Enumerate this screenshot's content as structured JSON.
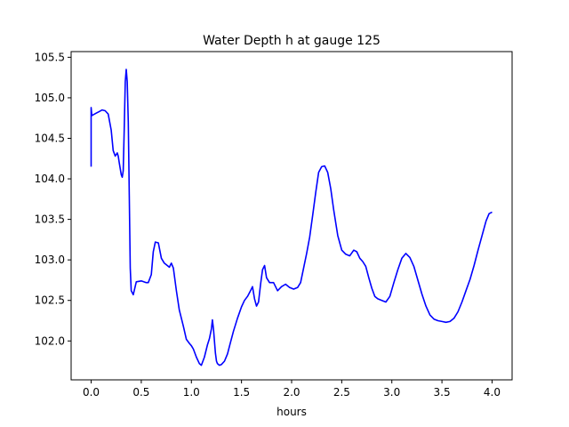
{
  "chart_data": {
    "type": "line",
    "title": "Water Depth h at gauge 125",
    "xlabel": "hours",
    "ylabel": "",
    "xlim": [
      -0.2,
      4.2
    ],
    "ylim": [
      101.52,
      105.57
    ],
    "xticks": [
      0.0,
      0.5,
      1.0,
      1.5,
      2.0,
      2.5,
      3.0,
      3.5,
      4.0
    ],
    "xtick_labels": [
      "0.0",
      "0.5",
      "1.0",
      "1.5",
      "2.0",
      "2.5",
      "3.0",
      "3.5",
      "4.0"
    ],
    "yticks": [
      102.0,
      102.5,
      103.0,
      103.5,
      104.0,
      104.5,
      105.0,
      105.5
    ],
    "ytick_labels": [
      "102.0",
      "102.5",
      "103.0",
      "103.5",
      "104.0",
      "104.5",
      "105.0",
      "105.5"
    ],
    "grid": false,
    "series": [
      {
        "color": "#0000ff",
        "x": [
          0.0,
          0.0,
          0.005,
          0.005,
          0.02,
          0.05,
          0.08,
          0.11,
          0.14,
          0.17,
          0.2,
          0.22,
          0.24,
          0.26,
          0.27,
          0.28,
          0.3,
          0.31,
          0.32,
          0.33,
          0.34,
          0.35,
          0.36,
          0.37,
          0.38,
          0.39,
          0.4,
          0.42,
          0.45,
          0.5,
          0.55,
          0.57,
          0.6,
          0.62,
          0.64,
          0.67,
          0.7,
          0.73,
          0.76,
          0.78,
          0.8,
          0.82,
          0.85,
          0.88,
          0.92,
          0.95,
          0.98,
          1.0,
          1.02,
          1.05,
          1.08,
          1.1,
          1.13,
          1.16,
          1.18,
          1.2,
          1.21,
          1.22,
          1.23,
          1.24,
          1.25,
          1.26,
          1.28,
          1.3,
          1.33,
          1.36,
          1.39,
          1.42,
          1.46,
          1.5,
          1.53,
          1.56,
          1.59,
          1.61,
          1.63,
          1.65,
          1.67,
          1.69,
          1.71,
          1.73,
          1.75,
          1.78,
          1.82,
          1.86,
          1.9,
          1.94,
          1.98,
          2.02,
          2.06,
          2.09,
          2.12,
          2.15,
          2.18,
          2.21,
          2.24,
          2.27,
          2.3,
          2.33,
          2.36,
          2.39,
          2.42,
          2.46,
          2.5,
          2.54,
          2.58,
          2.62,
          2.65,
          2.68,
          2.71,
          2.74,
          2.77,
          2.8,
          2.83,
          2.86,
          2.9,
          2.94,
          2.98,
          3.02,
          3.06,
          3.1,
          3.14,
          3.18,
          3.22,
          3.26,
          3.3,
          3.34,
          3.38,
          3.42,
          3.46,
          3.5,
          3.54,
          3.58,
          3.62,
          3.66,
          3.7,
          3.74,
          3.78,
          3.82,
          3.86,
          3.9,
          3.94,
          3.97,
          4.0
        ],
        "y": [
          104.15,
          104.88,
          104.8,
          104.78,
          104.79,
          104.81,
          104.83,
          104.85,
          104.84,
          104.8,
          104.6,
          104.35,
          104.28,
          104.32,
          104.28,
          104.2,
          104.05,
          104.02,
          104.1,
          104.6,
          105.2,
          105.35,
          105.2,
          104.7,
          103.8,
          102.9,
          102.62,
          102.57,
          102.73,
          102.74,
          102.72,
          102.72,
          102.82,
          103.1,
          103.22,
          103.21,
          103.02,
          102.96,
          102.93,
          102.91,
          102.96,
          102.9,
          102.62,
          102.38,
          102.18,
          102.02,
          101.97,
          101.94,
          101.9,
          101.8,
          101.72,
          101.7,
          101.8,
          101.95,
          102.03,
          102.15,
          102.26,
          102.15,
          102.0,
          101.85,
          101.75,
          101.72,
          101.7,
          101.71,
          101.75,
          101.84,
          101.98,
          102.12,
          102.28,
          102.42,
          102.5,
          102.55,
          102.62,
          102.67,
          102.52,
          102.43,
          102.48,
          102.7,
          102.88,
          102.93,
          102.78,
          102.72,
          102.72,
          102.62,
          102.67,
          102.7,
          102.66,
          102.64,
          102.66,
          102.72,
          102.9,
          103.08,
          103.28,
          103.55,
          103.83,
          104.08,
          104.15,
          104.16,
          104.08,
          103.88,
          103.62,
          103.3,
          103.12,
          103.07,
          103.05,
          103.12,
          103.1,
          103.02,
          102.98,
          102.92,
          102.78,
          102.65,
          102.55,
          102.52,
          102.5,
          102.48,
          102.55,
          102.72,
          102.88,
          103.02,
          103.08,
          103.03,
          102.92,
          102.75,
          102.58,
          102.43,
          102.32,
          102.27,
          102.25,
          102.24,
          102.23,
          102.24,
          102.28,
          102.36,
          102.48,
          102.62,
          102.76,
          102.93,
          103.12,
          103.3,
          103.48,
          103.57,
          103.59
        ]
      }
    ]
  }
}
